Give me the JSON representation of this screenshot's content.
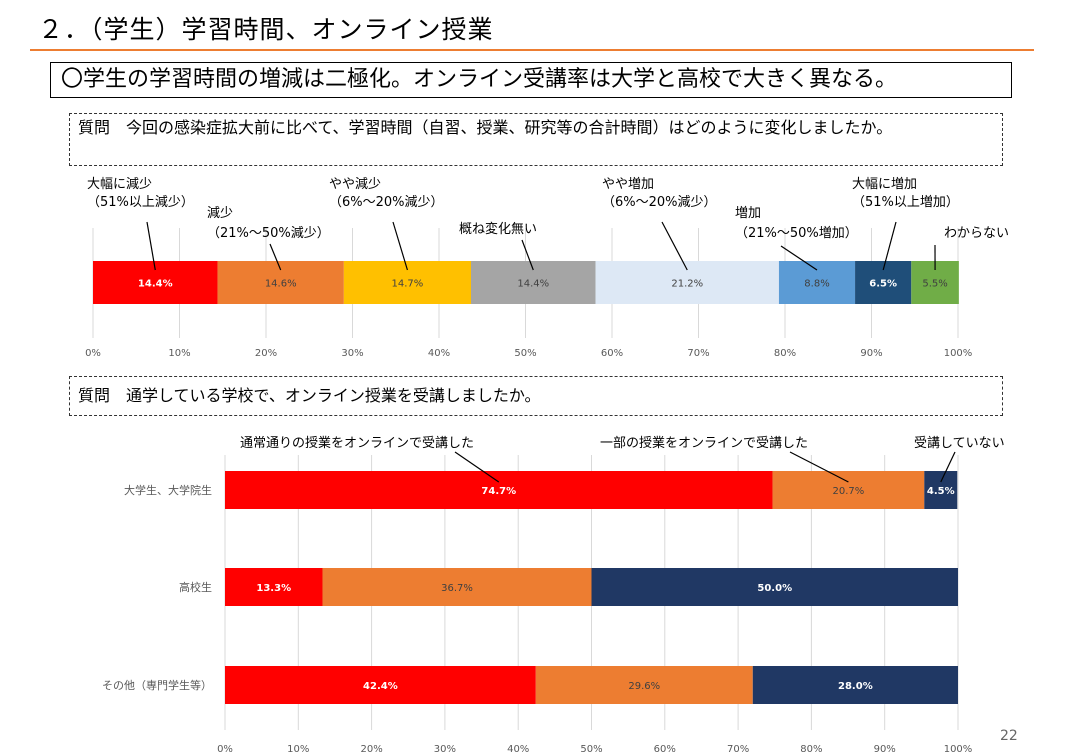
{
  "slide": {
    "title": "２．（学生）学習時間、オンライン授業",
    "headline": "〇学生の学習時間の増減は二極化。オンライン受講率は大学と高校で大きく異なる。",
    "page_number": "22"
  },
  "chart_data": [
    {
      "type": "bar",
      "orientation": "horizontal",
      "stacked": true,
      "question": "質問　今回の感染症拡大前に比べて、学習時間（自習、授業、研究等の合計時間）はどのように変化しましたか。",
      "xlim": [
        0,
        100
      ],
      "ticks": [
        "0%",
        "10%",
        "20%",
        "30%",
        "40%",
        "50%",
        "60%",
        "70%",
        "80%",
        "90%",
        "100%"
      ],
      "series": [
        {
          "name": "大幅に減少",
          "sub": "（51%以上減少）",
          "value": 14.4,
          "label": "14.4%",
          "color": "#ff0000",
          "text_color": "#ffffff"
        },
        {
          "name": "減少",
          "sub": "（21%～50%減少）",
          "value": 14.6,
          "label": "14.6%",
          "color": "#ed7d31",
          "text_color": "#404040"
        },
        {
          "name": "やや減少",
          "sub": "（6%～20%減少）",
          "value": 14.7,
          "label": "14.7%",
          "color": "#ffc000",
          "text_color": "#404040"
        },
        {
          "name": "概ね変化無い",
          "sub": "",
          "value": 14.4,
          "label": "14.4%",
          "color": "#a5a5a5",
          "text_color": "#404040"
        },
        {
          "name": "やや増加",
          "sub": "（6%～20%減少）",
          "value": 21.2,
          "label": "21.2%",
          "color": "#dde8f5",
          "text_color": "#404040"
        },
        {
          "name": "増加",
          "sub": "（21%～50%増加）",
          "value": 8.8,
          "label": "8.8%",
          "color": "#5b9bd5",
          "text_color": "#404040"
        },
        {
          "name": "大幅に増加",
          "sub": "（51%以上増加）",
          "value": 6.5,
          "label": "6.5%",
          "color": "#1f4e79",
          "text_color": "#ffffff"
        },
        {
          "name": "わからない",
          "sub": "",
          "value": 5.5,
          "label": "5.5%",
          "color": "#70ad47",
          "text_color": "#404040"
        }
      ]
    },
    {
      "type": "bar",
      "orientation": "horizontal",
      "stacked": true,
      "question": "質問　通学している学校で、オンライン授業を受講しましたか。",
      "xlim": [
        0,
        100
      ],
      "ticks": [
        "0%",
        "10%",
        "20%",
        "30%",
        "40%",
        "50%",
        "60%",
        "70%",
        "80%",
        "90%",
        "100%"
      ],
      "categories": [
        "大学生、大学院生",
        "高校生",
        "その他（専門学生等）"
      ],
      "series": [
        {
          "name": "通常通りの授業をオンラインで受講した",
          "color": "#ff0000",
          "text_color": "#ffffff",
          "values": [
            74.7,
            13.3,
            42.4
          ],
          "labels": [
            "74.7%",
            "13.3%",
            "42.4%"
          ]
        },
        {
          "name": "一部の授業をオンラインで受講した",
          "color": "#ed7d31",
          "text_color": "#404040",
          "values": [
            20.7,
            36.7,
            29.6
          ],
          "labels": [
            "20.7%",
            "36.7%",
            "29.6%"
          ]
        },
        {
          "name": "受講していない",
          "color": "#203864",
          "text_color": "#ffffff",
          "values": [
            4.5,
            50.0,
            28.0
          ],
          "labels": [
            "4.5%",
            "50.0%",
            "28.0%"
          ]
        }
      ]
    }
  ]
}
